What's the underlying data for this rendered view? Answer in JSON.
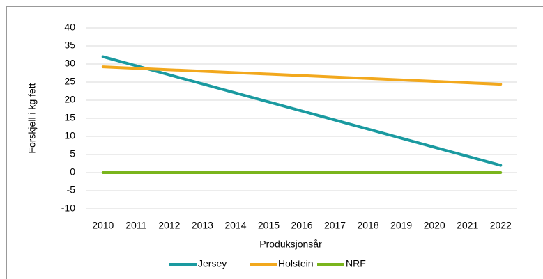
{
  "chart_data": {
    "type": "line",
    "x_label": "Produksjonsår",
    "y_label": "Forskjell i kg fett",
    "categories": [
      "2010",
      "2011",
      "2012",
      "2013",
      "2014",
      "2015",
      "2016",
      "2017",
      "2018",
      "2019",
      "2020",
      "2021",
      "2022"
    ],
    "series": [
      {
        "name": "Jersey",
        "color": "#1a9aa0",
        "values": [
          32,
          29.5,
          27,
          24.5,
          22,
          19.5,
          17,
          14.5,
          12,
          9.5,
          7,
          4.5,
          2
        ]
      },
      {
        "name": "Holstein",
        "color": "#f2a81d",
        "values": [
          29.2,
          28.8,
          28.4,
          28,
          27.6,
          27.2,
          26.8,
          26.4,
          26,
          25.6,
          25.2,
          24.8,
          24.4
        ]
      },
      {
        "name": "NRF",
        "color": "#7ab51d",
        "values": [
          0,
          0,
          0,
          0,
          0,
          0,
          0,
          0,
          0,
          0,
          0,
          0,
          0
        ]
      }
    ],
    "ylim": [
      -10,
      40
    ],
    "yticks": [
      -10,
      -5,
      0,
      5,
      10,
      15,
      20,
      25,
      30,
      35,
      40
    ],
    "grid": true,
    "legend": "bottom"
  }
}
